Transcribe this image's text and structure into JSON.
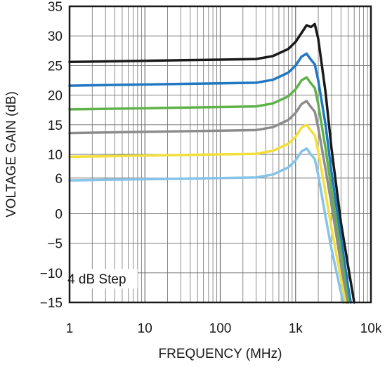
{
  "chart_data": {
    "type": "line",
    "xlabel": "FREQUENCY (MHz)",
    "ylabel": "VOLTAGE GAIN (dB)",
    "x_scale": "log",
    "xlim": [
      1,
      10000
    ],
    "ylim": [
      -15,
      35
    ],
    "grid": true,
    "x_tick_values": [
      1,
      10,
      100,
      1000,
      10000
    ],
    "x_tick_labels": [
      "1",
      "10",
      "100",
      "1k",
      "10k"
    ],
    "y_tick_values": [
      35,
      30,
      25,
      20,
      15,
      10,
      6,
      0,
      -5,
      -10,
      -15
    ],
    "y_tick_labels": [
      "35",
      "30",
      "25",
      "20",
      "15",
      "10",
      "6",
      "0",
      "−5",
      "−10",
      "−15"
    ],
    "annotation": "4 dB Step",
    "series": [
      {
        "color": "#1a1a1a",
        "x": [
          1,
          10,
          100,
          300,
          500,
          800,
          1000,
          1200,
          1400,
          1600,
          1800,
          2000,
          2500,
          3000,
          4000,
          5000,
          6000
        ],
        "y": [
          25.6,
          25.8,
          26.0,
          26.1,
          26.6,
          27.8,
          29.0,
          30.5,
          31.8,
          31.5,
          32.0,
          29.5,
          20.5,
          11.0,
          -1.5,
          -9.0,
          -15.0
        ]
      },
      {
        "color": "#1f78c1",
        "x": [
          1,
          10,
          100,
          300,
          500,
          800,
          1000,
          1200,
          1400,
          1600,
          1800,
          2000,
          2500,
          3000,
          4000,
          5000,
          5400
        ],
        "y": [
          21.6,
          21.8,
          22.0,
          22.1,
          22.6,
          23.8,
          25.0,
          26.5,
          27.0,
          26.0,
          25.2,
          22.5,
          15.0,
          7.0,
          -4.0,
          -12.5,
          -15.0
        ]
      },
      {
        "color": "#5fb24a",
        "x": [
          1,
          10,
          100,
          300,
          500,
          800,
          1000,
          1200,
          1400,
          1600,
          1800,
          2000,
          2500,
          3000,
          4000,
          5000
        ],
        "y": [
          17.6,
          17.8,
          18.0,
          18.1,
          18.6,
          19.8,
          21.0,
          22.5,
          23.0,
          22.0,
          21.2,
          18.5,
          11.0,
          4.0,
          -6.5,
          -15.0
        ]
      },
      {
        "color": "#8c8c8c",
        "x": [
          1,
          10,
          100,
          300,
          500,
          800,
          1000,
          1200,
          1400,
          1600,
          1800,
          2000,
          2500,
          3000,
          4000,
          4800
        ],
        "y": [
          13.6,
          13.8,
          14.0,
          14.1,
          14.6,
          15.8,
          17.0,
          18.5,
          19.0,
          18.0,
          17.2,
          14.5,
          7.5,
          1.5,
          -8.5,
          -15.0
        ]
      },
      {
        "color": "#f2df3a",
        "x": [
          1,
          10,
          100,
          300,
          500,
          800,
          1000,
          1200,
          1400,
          1600,
          1800,
          2000,
          2500,
          3000,
          4000,
          4600
        ],
        "y": [
          9.6,
          9.8,
          10.0,
          10.1,
          10.6,
          11.8,
          13.0,
          14.5,
          15.0,
          14.0,
          13.2,
          10.5,
          3.5,
          -2.5,
          -11.0,
          -15.0
        ]
      },
      {
        "color": "#86c3e8",
        "x": [
          1,
          10,
          100,
          300,
          500,
          800,
          1000,
          1200,
          1400,
          1600,
          1800,
          2000,
          2500,
          3000,
          3800,
          4300
        ],
        "y": [
          5.6,
          5.8,
          6.0,
          6.1,
          6.6,
          7.8,
          9.0,
          10.5,
          11.0,
          10.0,
          9.2,
          6.5,
          -0.5,
          -6.0,
          -12.0,
          -15.0
        ]
      }
    ]
  }
}
